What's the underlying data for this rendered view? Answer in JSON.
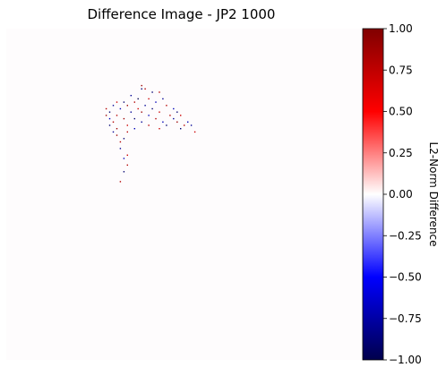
{
  "chart_data": {
    "type": "heatmap",
    "title": "Difference Image - JP2 1000",
    "colormap": "seismic",
    "axes_visible": false,
    "colorbar": {
      "label": "L2-Norm Difference",
      "vmin": -1.0,
      "vmax": 1.0,
      "ticks": [
        1.0,
        0.75,
        0.5,
        0.25,
        0.0,
        -0.25,
        -0.5,
        -0.75,
        -1.0
      ],
      "tick_labels": [
        "1.00",
        "0.75",
        "0.50",
        "0.25",
        "0.00",
        "−0.25",
        "−0.50",
        "−0.75",
        "−1.00"
      ]
    },
    "background_value": 0.0,
    "speckle_points": [
      {
        "x": 0.38,
        "y": 0.17,
        "v": 0.9
      },
      {
        "x": 0.38,
        "y": 0.18,
        "v": -0.9
      },
      {
        "x": 0.39,
        "y": 0.18,
        "v": 0.8
      },
      {
        "x": 0.41,
        "y": 0.19,
        "v": -0.9
      },
      {
        "x": 0.43,
        "y": 0.19,
        "v": 0.8
      },
      {
        "x": 0.35,
        "y": 0.2,
        "v": -0.8
      },
      {
        "x": 0.37,
        "y": 0.21,
        "v": -1.0
      },
      {
        "x": 0.4,
        "y": 0.21,
        "v": 0.7
      },
      {
        "x": 0.44,
        "y": 0.21,
        "v": -0.8
      },
      {
        "x": 0.31,
        "y": 0.22,
        "v": 0.7
      },
      {
        "x": 0.33,
        "y": 0.22,
        "v": -0.9
      },
      {
        "x": 0.36,
        "y": 0.22,
        "v": 0.8
      },
      {
        "x": 0.42,
        "y": 0.22,
        "v": -0.7
      },
      {
        "x": 0.3,
        "y": 0.23,
        "v": -0.8
      },
      {
        "x": 0.34,
        "y": 0.23,
        "v": 0.9
      },
      {
        "x": 0.39,
        "y": 0.23,
        "v": -0.8
      },
      {
        "x": 0.45,
        "y": 0.23,
        "v": 0.8
      },
      {
        "x": 0.28,
        "y": 0.24,
        "v": 0.8
      },
      {
        "x": 0.32,
        "y": 0.24,
        "v": -0.7
      },
      {
        "x": 0.37,
        "y": 0.24,
        "v": 0.7
      },
      {
        "x": 0.41,
        "y": 0.24,
        "v": -0.9
      },
      {
        "x": 0.47,
        "y": 0.24,
        "v": -0.7
      },
      {
        "x": 0.29,
        "y": 0.25,
        "v": -0.9
      },
      {
        "x": 0.35,
        "y": 0.25,
        "v": -0.8
      },
      {
        "x": 0.38,
        "y": 0.25,
        "v": 0.9
      },
      {
        "x": 0.43,
        "y": 0.25,
        "v": 0.7
      },
      {
        "x": 0.48,
        "y": 0.25,
        "v": -0.9
      },
      {
        "x": 0.28,
        "y": 0.26,
        "v": 0.9
      },
      {
        "x": 0.31,
        "y": 0.26,
        "v": 0.8
      },
      {
        "x": 0.4,
        "y": 0.26,
        "v": -0.7
      },
      {
        "x": 0.46,
        "y": 0.26,
        "v": 0.8
      },
      {
        "x": 0.49,
        "y": 0.26,
        "v": 0.7
      },
      {
        "x": 0.29,
        "y": 0.27,
        "v": -0.7
      },
      {
        "x": 0.33,
        "y": 0.27,
        "v": 0.9
      },
      {
        "x": 0.36,
        "y": 0.27,
        "v": -0.9
      },
      {
        "x": 0.42,
        "y": 0.27,
        "v": 0.8
      },
      {
        "x": 0.47,
        "y": 0.27,
        "v": -0.8
      },
      {
        "x": 0.3,
        "y": 0.28,
        "v": 0.8
      },
      {
        "x": 0.38,
        "y": 0.28,
        "v": -0.8
      },
      {
        "x": 0.44,
        "y": 0.28,
        "v": -0.7
      },
      {
        "x": 0.48,
        "y": 0.28,
        "v": 0.9
      },
      {
        "x": 0.51,
        "y": 0.28,
        "v": -0.7
      },
      {
        "x": 0.29,
        "y": 0.29,
        "v": -0.9
      },
      {
        "x": 0.34,
        "y": 0.29,
        "v": 0.7
      },
      {
        "x": 0.4,
        "y": 0.29,
        "v": 0.8
      },
      {
        "x": 0.45,
        "y": 0.29,
        "v": -0.9
      },
      {
        "x": 0.5,
        "y": 0.29,
        "v": 0.8
      },
      {
        "x": 0.52,
        "y": 0.29,
        "v": -0.8
      },
      {
        "x": 0.31,
        "y": 0.3,
        "v": 0.9
      },
      {
        "x": 0.36,
        "y": 0.3,
        "v": -0.7
      },
      {
        "x": 0.43,
        "y": 0.3,
        "v": 0.7
      },
      {
        "x": 0.49,
        "y": 0.3,
        "v": -0.9
      },
      {
        "x": 0.3,
        "y": 0.31,
        "v": -0.8
      },
      {
        "x": 0.34,
        "y": 0.31,
        "v": 0.8
      },
      {
        "x": 0.53,
        "y": 0.31,
        "v": 0.7
      },
      {
        "x": 0.31,
        "y": 0.32,
        "v": 0.9
      },
      {
        "x": 0.33,
        "y": 0.33,
        "v": -0.9
      },
      {
        "x": 0.32,
        "y": 0.34,
        "v": 0.8
      },
      {
        "x": 0.32,
        "y": 0.36,
        "v": -0.8
      },
      {
        "x": 0.34,
        "y": 0.38,
        "v": 0.7
      },
      {
        "x": 0.33,
        "y": 0.39,
        "v": -0.7
      },
      {
        "x": 0.34,
        "y": 0.41,
        "v": 0.8
      },
      {
        "x": 0.33,
        "y": 0.43,
        "v": -0.9
      },
      {
        "x": 0.32,
        "y": 0.46,
        "v": 0.8
      }
    ]
  }
}
